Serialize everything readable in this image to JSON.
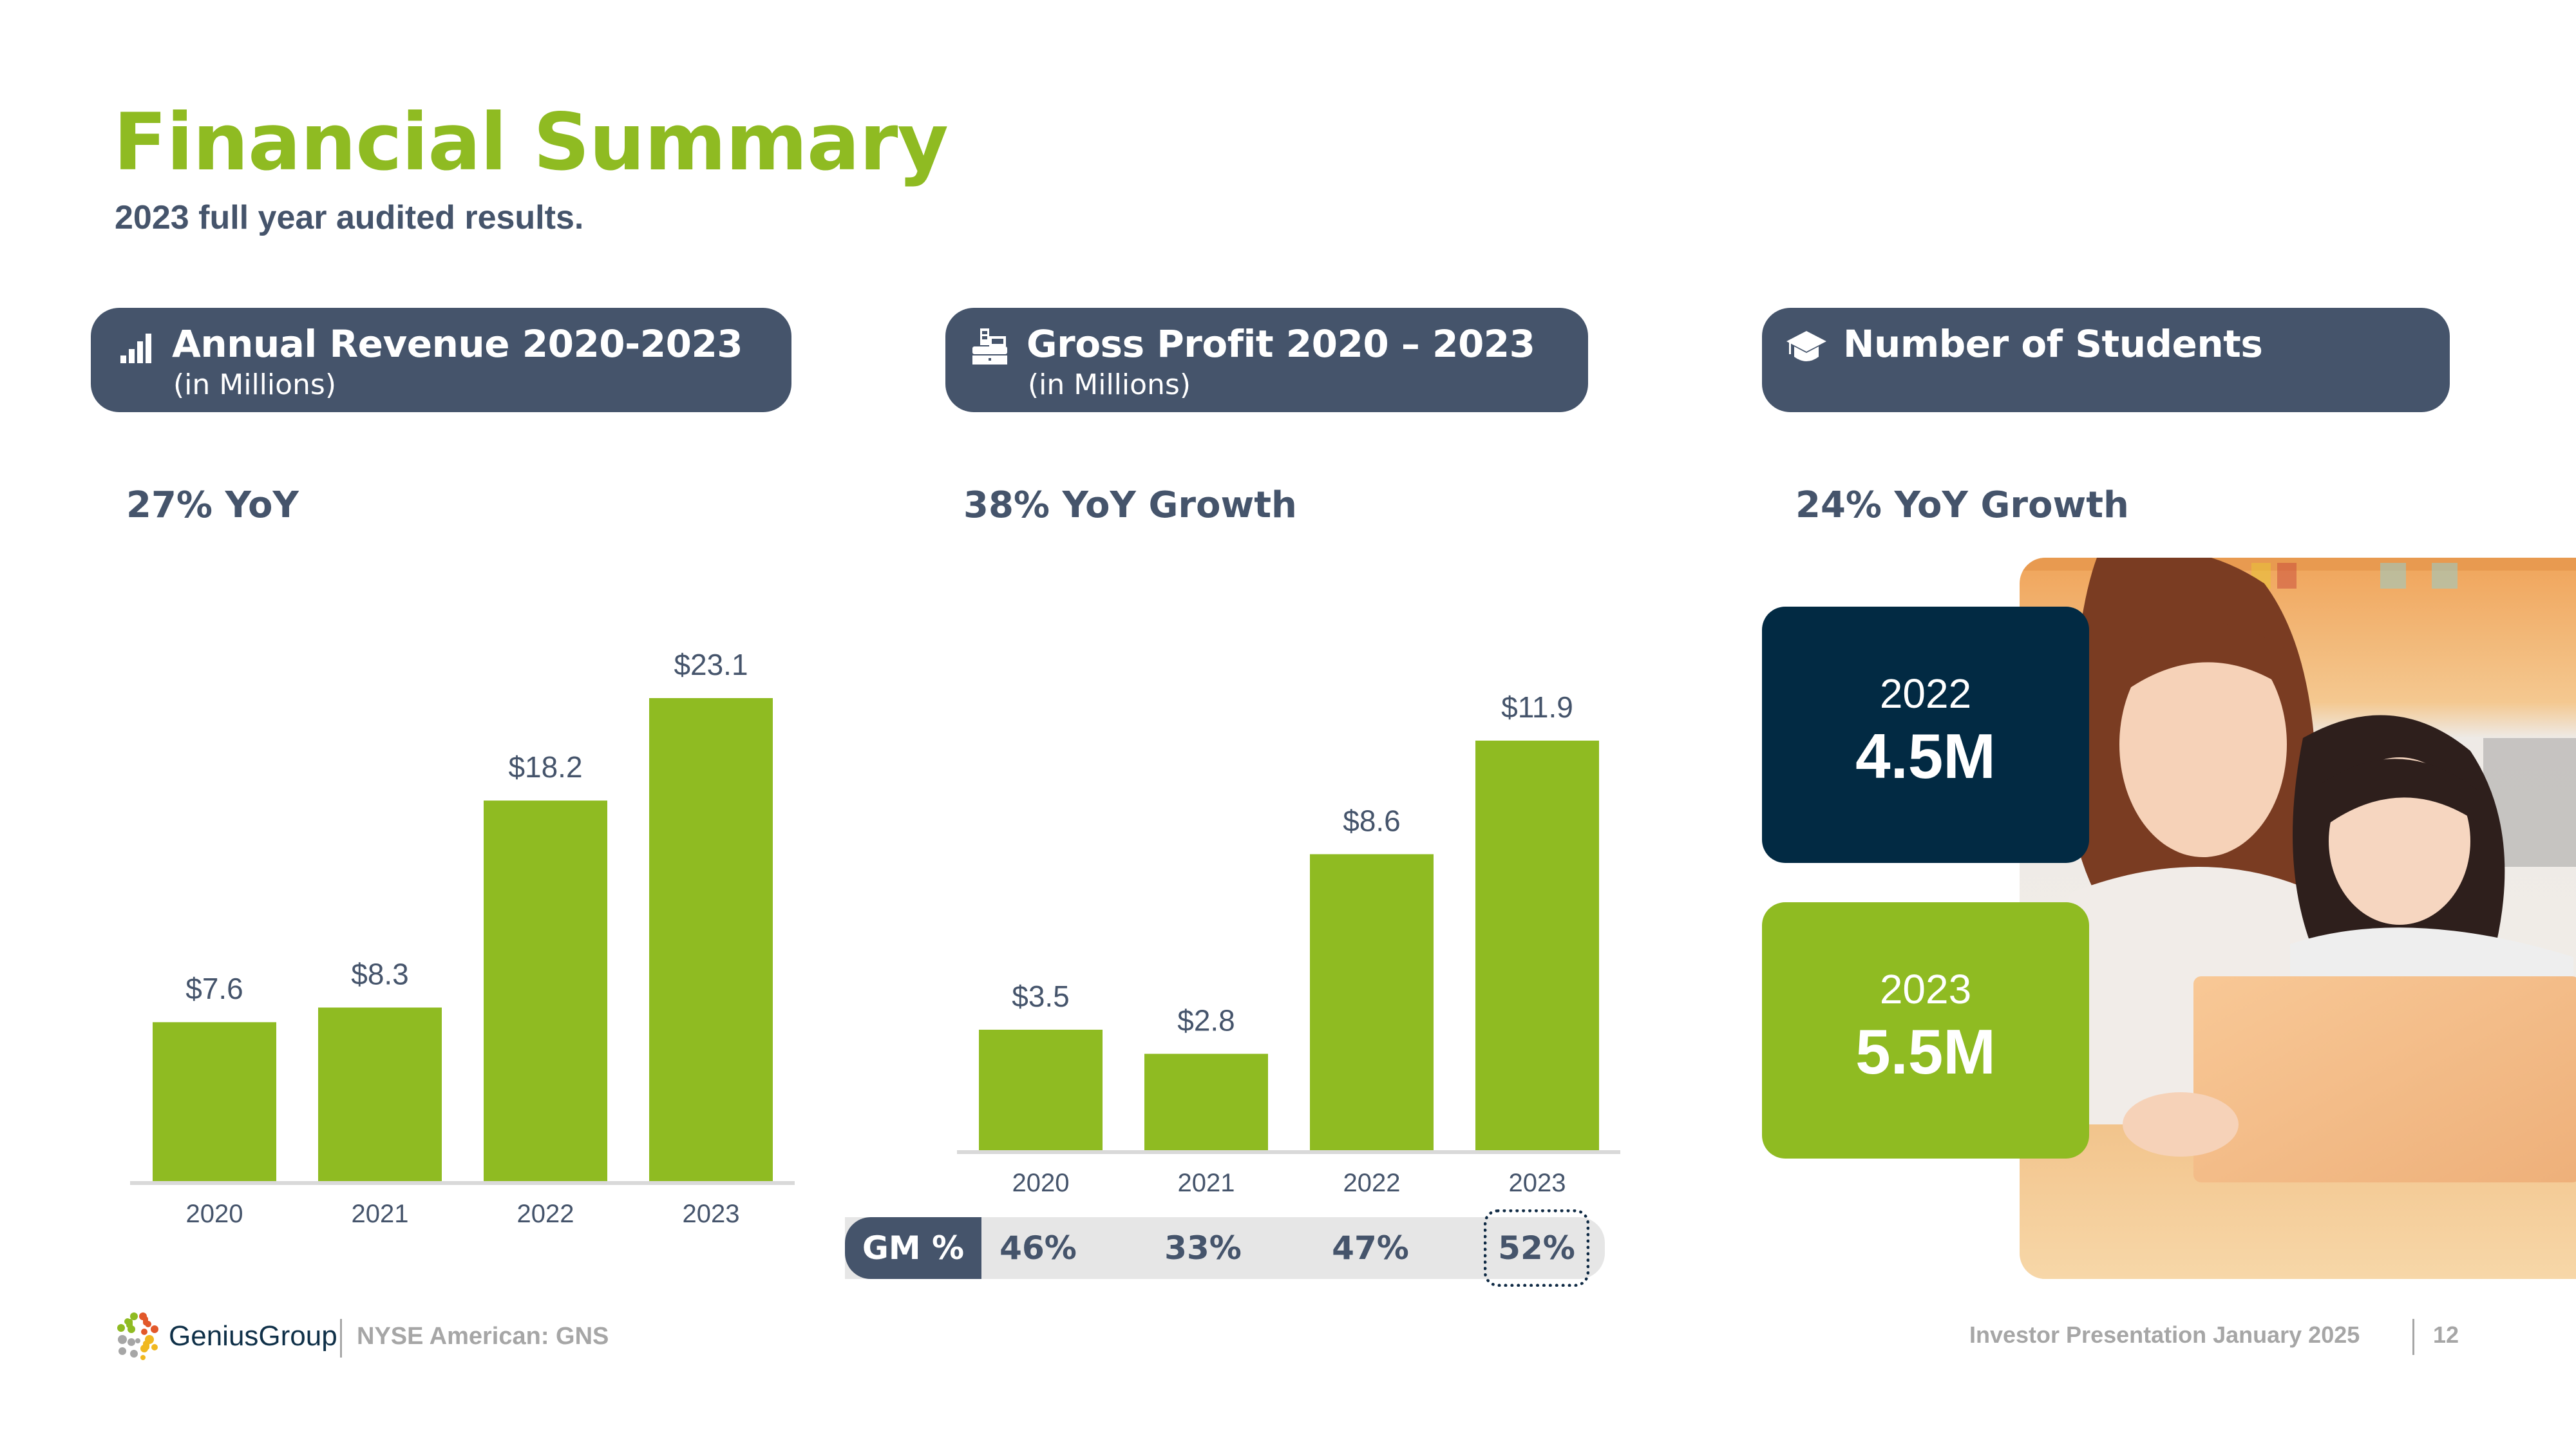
{
  "header": {
    "title": "Financial Summary",
    "subtitle": "2023 full year audited results."
  },
  "panels": {
    "revenue": {
      "icon": "bar-chart-icon",
      "title": "Annual Revenue 2020-2023",
      "subtitle": "(in Millions)",
      "growth": "27% YoY"
    },
    "gross_profit": {
      "icon": "cash-register-icon",
      "title": "Gross Profit 2020 – 2023",
      "subtitle": "(in Millions)",
      "growth": "38% YoY Growth"
    },
    "students": {
      "icon": "graduation-cap-icon",
      "title": "Number of Students",
      "growth": "24% YoY Growth",
      "stats": [
        {
          "year": "2022",
          "value": "4.5M"
        },
        {
          "year": "2023",
          "value": "5.5M"
        }
      ]
    }
  },
  "gross_margin": {
    "label": "GM %",
    "values": [
      "46%",
      "33%",
      "47%",
      "52%"
    ],
    "highlighted_index": 3
  },
  "colors": {
    "accent_green": "#8fbb22",
    "slate": "#45546b",
    "navy": "#022a43",
    "axis_gray": "#d9d9d9",
    "gm_bg": "#e6e6e6"
  },
  "chart_data": [
    {
      "type": "bar",
      "title": "Annual Revenue 2020-2023",
      "ylabel": "(in Millions)",
      "xlabel": "",
      "categories": [
        "2020",
        "2021",
        "2022",
        "2023"
      ],
      "values": [
        7.6,
        8.3,
        18.2,
        23.1
      ],
      "data_labels": [
        "$7.6",
        "$8.3",
        "$18.2",
        "$23.1"
      ],
      "ylim": [
        0,
        23.1
      ],
      "grid": false,
      "legend": "none"
    },
    {
      "type": "bar",
      "title": "Gross Profit 2020 – 2023",
      "ylabel": "(in Millions)",
      "xlabel": "",
      "categories": [
        "2020",
        "2021",
        "2022",
        "2023"
      ],
      "values": [
        3.5,
        2.8,
        8.6,
        11.9
      ],
      "data_labels": [
        "$3.5",
        "$2.8",
        "$8.6",
        "$11.9"
      ],
      "ylim": [
        0,
        11.9
      ],
      "grid": false,
      "legend": "none"
    }
  ],
  "footer": {
    "brand": "GeniusGroup",
    "ticker": "NYSE American: GNS",
    "presentation": "Investor Presentation January 2025",
    "page_number": "12"
  }
}
